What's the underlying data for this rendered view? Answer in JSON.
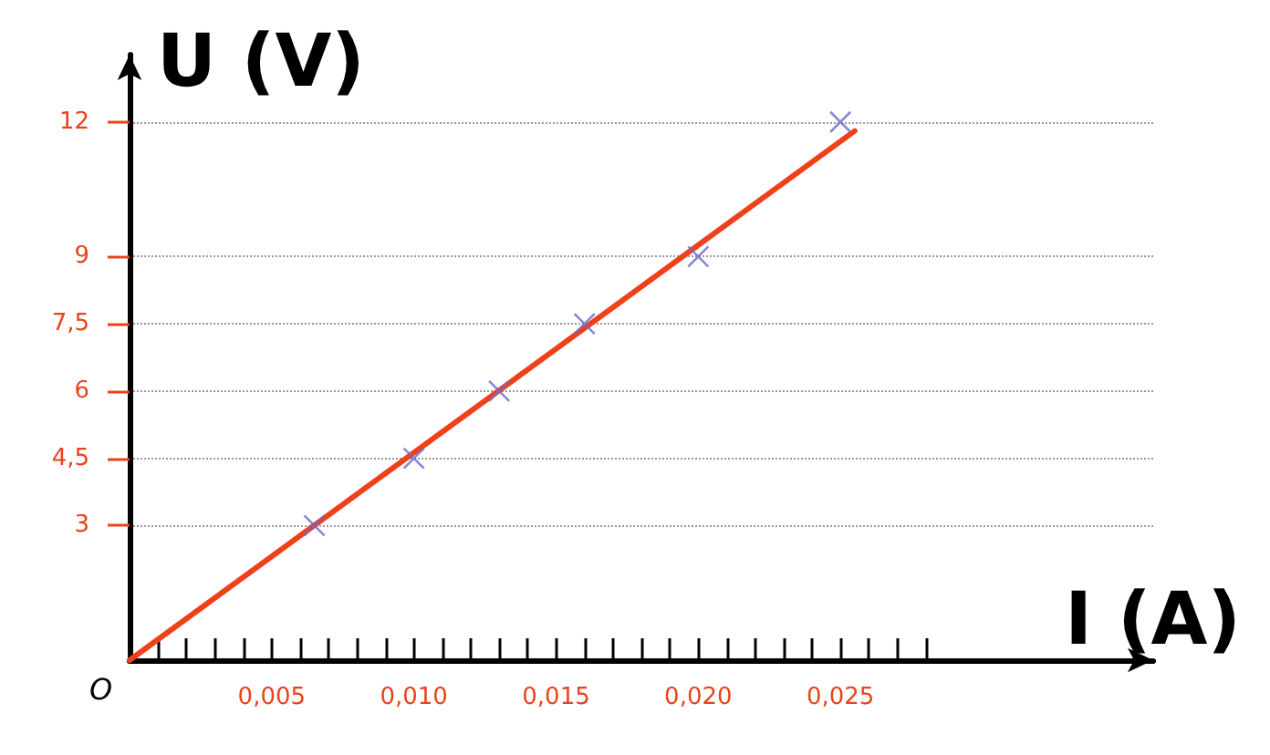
{
  "chart_data": {
    "type": "scatter",
    "xlabel": "I (A)",
    "ylabel": "U (V)",
    "x": [
      0.0065,
      0.01,
      0.013,
      0.016,
      0.02,
      0.025
    ],
    "series": [
      {
        "color": "#6a6acb",
        "marker": "cross",
        "values": [
          3,
          4.5,
          6,
          7.5,
          9,
          12
        ]
      },
      {
        "type": "line",
        "color": "#f0401a",
        "line_style": "solid",
        "marker": "none",
        "x": [
          0,
          0.0255
        ],
        "values": [
          0,
          11.8
        ]
      }
    ],
    "xlim": [
      0,
      0.036
    ],
    "ylim": [
      0,
      13.5
    ],
    "xticks": [
      {
        "value": 0.001,
        "label": null
      },
      {
        "value": 0.002,
        "label": null
      },
      {
        "value": 0.003,
        "label": null
      },
      {
        "value": 0.004,
        "label": null
      },
      {
        "value": 0.005,
        "label": "0,005"
      },
      {
        "value": 0.006,
        "label": null
      },
      {
        "value": 0.007,
        "label": null
      },
      {
        "value": 0.008,
        "label": null
      },
      {
        "value": 0.009,
        "label": null
      },
      {
        "value": 0.01,
        "label": "0,010"
      },
      {
        "value": 0.011,
        "label": null
      },
      {
        "value": 0.012,
        "label": null
      },
      {
        "value": 0.013,
        "label": null
      },
      {
        "value": 0.014,
        "label": null
      },
      {
        "value": 0.015,
        "label": "0,015"
      },
      {
        "value": 0.016,
        "label": null
      },
      {
        "value": 0.017,
        "label": null
      },
      {
        "value": 0.018,
        "label": null
      },
      {
        "value": 0.019,
        "label": null
      },
      {
        "value": 0.02,
        "label": "0,020"
      },
      {
        "value": 0.021,
        "label": null
      },
      {
        "value": 0.022,
        "label": null
      },
      {
        "value": 0.023,
        "label": null
      },
      {
        "value": 0.024,
        "label": null
      },
      {
        "value": 0.025,
        "label": "0,025"
      },
      {
        "value": 0.026,
        "label": null
      },
      {
        "value": 0.027,
        "label": null
      },
      {
        "value": 0.028,
        "label": null
      }
    ],
    "yticks": [
      3,
      {
        "value": 4.5,
        "label": "4,5"
      },
      6,
      {
        "value": 7.5,
        "label": "7,5"
      },
      9,
      12
    ],
    "annotations": [
      {
        "text": "O",
        "x": 0,
        "y": 0
      }
    ],
    "grid": "y"
  }
}
